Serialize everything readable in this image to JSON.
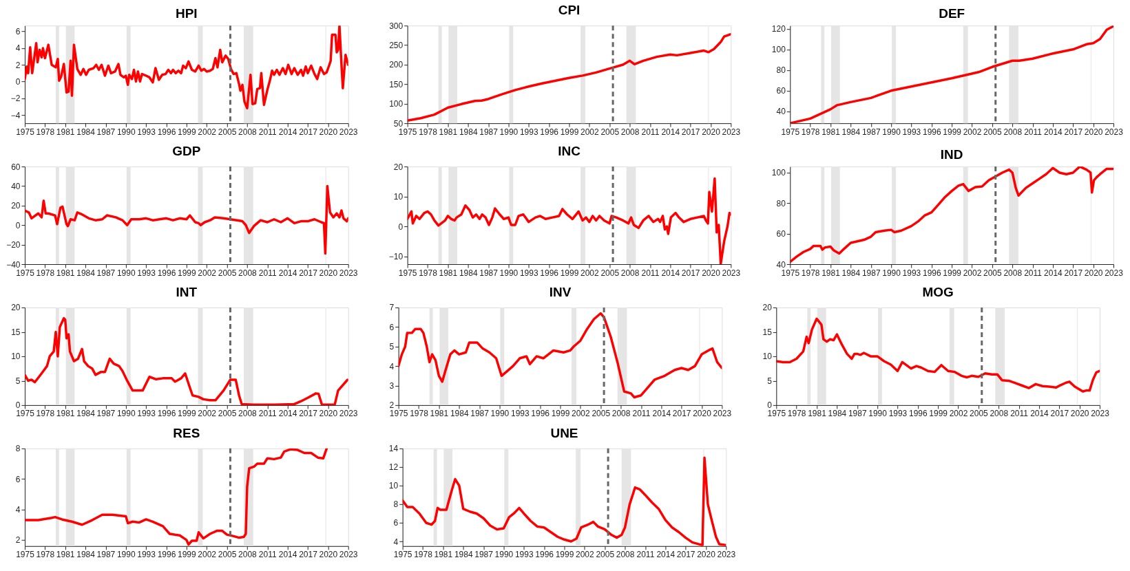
{
  "chart_data": [
    {
      "type": "line",
      "title": "HPI",
      "xlim": [
        1975,
        2023
      ],
      "xticks": [
        1975,
        1978,
        1981,
        1984,
        1987,
        1990,
        1993,
        1996,
        1999,
        2002,
        2005,
        2008,
        2011,
        2014,
        2017,
        2020,
        2023
      ],
      "ylim": [
        -5,
        6.7
      ],
      "yticks": [
        -4,
        -2,
        0,
        2,
        4,
        6
      ],
      "grid": false,
      "line_style": "solid",
      "x": [
        1975,
        1975.3,
        1975.5,
        1975.8,
        1976.1,
        1976.7,
        1976.9,
        1977.2,
        1977.5,
        1977.7,
        1978.0,
        1978.5,
        1979.0,
        1979.6,
        1979.9,
        1980.1,
        1980.4,
        1980.8,
        1981.2,
        1981.5,
        1981.8,
        1982.0,
        1982.3,
        1982.8,
        1983.3,
        1983.7,
        1984.1,
        1984.5,
        1985.2,
        1985.6,
        1986.0,
        1986.4,
        1986.9,
        1987.4,
        1987.8,
        1988.4,
        1988.9,
        1989.2,
        1989.7,
        1990.0,
        1990.3,
        1990.5,
        1990.9,
        1991.2,
        1991.5,
        1991.8,
        1992.1,
        1992.4,
        1993.0,
        1993.5,
        1994.0,
        1994.4,
        1994.9,
        1995.4,
        1995.9,
        1996.3,
        1996.7,
        1997.0,
        1997.4,
        1997.8,
        1998.2,
        1998.5,
        1998.9,
        1999.3,
        1999.8,
        2000.3,
        2000.8,
        2001.2,
        2001.6,
        2002.0,
        2002.5,
        2002.9,
        2003.3,
        2003.6,
        2004.0,
        2004.3,
        2004.8,
        2005.2,
        2005.6,
        2006.0,
        2006.4,
        2006.8,
        2007.0,
        2007.3,
        2007.6,
        2008.0,
        2008.5,
        2008.8,
        2009.2,
        2009.5,
        2009.9,
        2010.1,
        2010.5,
        2011.0,
        2011.4,
        2011.7,
        2012.0,
        2012.4,
        2012.8,
        2013.3,
        2013.7,
        2014.1,
        2014.6,
        2015.0,
        2015.5,
        2016.0,
        2016.3,
        2016.7,
        2017.0,
        2017.5,
        2018.0,
        2018.4,
        2018.9,
        2019.4,
        2019.8,
        2020.2,
        2020.4,
        2020.6,
        2021.1,
        2021.3,
        2021.5,
        2021.7,
        2022.0,
        2022.2,
        2022.6,
        2023.0
      ],
      "series": [
        {
          "color": "#ff0000",
          "values": [
            0.3,
            1.8,
            1.0,
            4.1,
            1.0,
            4.6,
            2.3,
            3.8,
            2.9,
            4.0,
            2.8,
            4.4,
            2.0,
            1.7,
            2.7,
            0.1,
            0.6,
            2.1,
            -1.3,
            -1.2,
            2.5,
            -1.7,
            4.4,
            1.5,
            0.8,
            1.5,
            0.8,
            1.4,
            1.6,
            2.0,
            1.4,
            2.0,
            0.7,
            1.9,
            1.0,
            1.2,
            2.1,
            0.8,
            0.5,
            0.7,
            -0.4,
            0.8,
            0.3,
            1.4,
            0.0,
            1.2,
            0.0,
            0.9,
            0.7,
            0.5,
            -0.1,
            1.6,
            0.2,
            0.8,
            0.9,
            1.4,
            1.0,
            1.4,
            1.0,
            1.3,
            1.0,
            1.9,
            1.6,
            2.4,
            1.4,
            1.2,
            1.9,
            1.3,
            1.5,
            1.2,
            1.3,
            1.5,
            2.8,
            1.7,
            3.8,
            2.3,
            3.1,
            2.7,
            1.5,
            0.9,
            1.0,
            -0.3,
            -1.1,
            -0.4,
            -2.4,
            -3.2,
            0.8,
            -2.7,
            -2.6,
            -0.9,
            -0.8,
            1.0,
            -2.8,
            -1.0,
            0.2,
            1.3,
            0.8,
            1.4,
            0.8,
            1.6,
            0.9,
            2.0,
            0.9,
            1.6,
            0.8,
            1.4,
            0.7,
            1.8,
            1.0,
            1.9,
            0.9,
            0.3,
            1.7,
            0.9,
            1.1,
            2.0,
            2.5,
            5.6,
            5.6,
            3.5,
            3.8,
            6.7,
            2.0,
            -0.8,
            3.2,
            2.0
          ]
        }
      ],
      "bands": [
        {
          "axis": "x",
          "from": 1979.6,
          "to": 1980.1,
          "color": "#e5e5e5"
        },
        {
          "axis": "x",
          "from": 1981.1,
          "to": 1982.4,
          "color": "#e5e5e5"
        },
        {
          "axis": "x",
          "from": 1990.1,
          "to": 1990.7,
          "color": "#e5e5e5"
        },
        {
          "axis": "x",
          "from": 2000.7,
          "to": 2001.4,
          "color": "#e5e5e5"
        },
        {
          "axis": "x",
          "from": 2007.5,
          "to": 2008.9,
          "color": "#e5e5e5"
        },
        {
          "axis": "x",
          "from": 2019.6,
          "to": 2019.75,
          "color": "#ececec"
        }
      ],
      "ref_lines": [
        {
          "axis": "x",
          "value": 2005.5,
          "color": "#666666",
          "line_style": "dashed"
        }
      ]
    },
    {
      "type": "line",
      "title": "CPI",
      "xlim": [
        1975,
        2023
      ],
      "xticks": [
        1975,
        1978,
        1981,
        1984,
        1987,
        1990,
        1993,
        1996,
        1999,
        2002,
        2005,
        2008,
        2011,
        2014,
        2017,
        2020,
        2023
      ],
      "ylim": [
        50,
        300
      ],
      "yticks": [
        50,
        100,
        150,
        200,
        250,
        300
      ],
      "grid": false,
      "line_style": "solid",
      "x": [
        1975,
        1977,
        1979,
        1981,
        1983,
        1985,
        1986,
        1987,
        1989,
        1991,
        1993,
        1995,
        1997,
        1999,
        2001,
        2003,
        2005,
        2007,
        2008,
        2008.7,
        2010,
        2012,
        2014,
        2015,
        2017,
        2019,
        2019.7,
        2020.5,
        2021.5,
        2022,
        2023
      ],
      "series": [
        {
          "color": "#ff0000",
          "values": [
            57,
            63,
            72,
            90,
            99,
            107,
            108,
            112,
            124,
            135,
            144,
            152,
            159,
            166,
            172,
            180,
            190,
            200,
            210,
            201,
            210,
            220,
            226,
            224,
            230,
            236,
            232,
            240,
            258,
            272,
            278
          ]
        }
      ],
      "bands": [
        {
          "axis": "x",
          "from": 1979.6,
          "to": 1980.1,
          "color": "#e5e5e5"
        },
        {
          "axis": "x",
          "from": 1981.1,
          "to": 1982.4,
          "color": "#e5e5e5"
        },
        {
          "axis": "x",
          "from": 1990.1,
          "to": 1990.7,
          "color": "#e5e5e5"
        },
        {
          "axis": "x",
          "from": 2000.7,
          "to": 2001.4,
          "color": "#e5e5e5"
        },
        {
          "axis": "x",
          "from": 2007.5,
          "to": 2008.9,
          "color": "#e5e5e5"
        },
        {
          "axis": "x",
          "from": 2019.6,
          "to": 2019.75,
          "color": "#ececec"
        }
      ],
      "ref_lines": [
        {
          "axis": "x",
          "value": 2005.5,
          "color": "#666666",
          "line_style": "dashed"
        }
      ]
    },
    {
      "type": "line",
      "title": "DEF",
      "xlim": [
        1975,
        2023
      ],
      "xticks": [
        1975,
        1978,
        1981,
        1984,
        1987,
        1990,
        1993,
        1996,
        1999,
        2002,
        2005,
        2008,
        2011,
        2014,
        2017,
        2020,
        2023
      ],
      "ylim": [
        28.5,
        123
      ],
      "yticks": [
        40,
        60,
        80,
        100,
        120
      ],
      "grid": false,
      "line_style": "solid",
      "x": [
        1975,
        1978,
        1981,
        1982,
        1984,
        1987,
        1990,
        1993,
        1996,
        1999,
        2001,
        2003,
        2005,
        2007,
        2008,
        2009,
        2011,
        2014,
        2017,
        2019,
        2020,
        2021,
        2022,
        2023
      ],
      "series": [
        {
          "color": "#ff0000",
          "values": [
            28.5,
            33,
            42,
            46,
            49,
            53,
            60,
            64,
            68,
            72,
            75,
            78,
            83,
            87,
            89,
            89,
            91,
            96,
            100,
            105,
            106,
            110,
            119,
            122.5
          ]
        }
      ],
      "bands": [
        {
          "axis": "x",
          "from": 1979.6,
          "to": 1980.1,
          "color": "#e5e5e5"
        },
        {
          "axis": "x",
          "from": 1981.1,
          "to": 1982.4,
          "color": "#e5e5e5"
        },
        {
          "axis": "x",
          "from": 1990.1,
          "to": 1990.7,
          "color": "#e5e5e5"
        },
        {
          "axis": "x",
          "from": 2000.7,
          "to": 2001.4,
          "color": "#e5e5e5"
        },
        {
          "axis": "x",
          "from": 2007.5,
          "to": 2008.9,
          "color": "#e5e5e5"
        },
        {
          "axis": "x",
          "from": 2019.6,
          "to": 2019.75,
          "color": "#ececec"
        }
      ],
      "ref_lines": [
        {
          "axis": "x",
          "value": 2005.5,
          "color": "#666666",
          "line_style": "dashed"
        }
      ]
    },
    {
      "type": "line",
      "title": "GDP",
      "xlim": [
        1975,
        2023
      ],
      "xticks": [
        1975,
        1978,
        1981,
        1984,
        1987,
        1990,
        1993,
        1996,
        1999,
        2002,
        2005,
        2008,
        2011,
        2014,
        2017,
        2020,
        2023
      ],
      "ylim": [
        -40,
        60
      ],
      "yticks": [
        -40,
        -20,
        0,
        20,
        40,
        60
      ],
      "grid": false,
      "line_style": "solid",
      "x": [
        1975,
        1975.6,
        1976,
        1977,
        1977.5,
        1977.8,
        1978.1,
        1978.5,
        1979.5,
        1979.8,
        1980.3,
        1980.6,
        1981.2,
        1981.4,
        1981.8,
        1982.4,
        1982.8,
        1983.5,
        1984.5,
        1985.5,
        1986.5,
        1987.2,
        1988.5,
        1989.5,
        1990.2,
        1990.8,
        1992,
        1993,
        1994,
        1995,
        1996,
        1997,
        1998,
        1999,
        1999.5,
        2000.3,
        2000.8,
        2001.1,
        2001.7,
        2002.5,
        2003.2,
        2004.5,
        2005.5,
        2006.5,
        2007.3,
        2007.8,
        2008.3,
        2009,
        2010,
        2011,
        2012,
        2013,
        2014,
        2015,
        2016,
        2017,
        2018,
        2019,
        2019.4,
        2019.6,
        2019.9,
        2020.3,
        2020.8,
        2021.3,
        2021.7,
        2022,
        2022.3,
        2022.8,
        2023
      ],
      "series": [
        {
          "color": "#ff0000",
          "values": [
            15,
            13,
            7,
            12,
            8,
            25,
            12,
            12,
            10,
            1,
            18,
            19,
            1,
            -1,
            6,
            5,
            13,
            11,
            7,
            5,
            6,
            10,
            8,
            5,
            0,
            6,
            6,
            7,
            5,
            6,
            7,
            5,
            7,
            6,
            10,
            3,
            2,
            0,
            3,
            5,
            8,
            7,
            6,
            5,
            4,
            0,
            -8,
            -1,
            5,
            3,
            6,
            3,
            7,
            2,
            4,
            4,
            6,
            3,
            2,
            -29,
            40,
            13,
            8,
            12,
            8,
            15,
            7,
            4,
            7
          ]
        }
      ],
      "bands": [
        {
          "axis": "x",
          "from": 1979.6,
          "to": 1980.1,
          "color": "#e5e5e5"
        },
        {
          "axis": "x",
          "from": 1981.1,
          "to": 1982.4,
          "color": "#e5e5e5"
        },
        {
          "axis": "x",
          "from": 1990.1,
          "to": 1990.7,
          "color": "#e5e5e5"
        },
        {
          "axis": "x",
          "from": 2000.7,
          "to": 2001.4,
          "color": "#e5e5e5"
        },
        {
          "axis": "x",
          "from": 2007.5,
          "to": 2008.9,
          "color": "#e5e5e5"
        },
        {
          "axis": "x",
          "from": 2019.6,
          "to": 2019.75,
          "color": "#ececec"
        }
      ],
      "ref_lines": [
        {
          "axis": "x",
          "value": 2005.5,
          "color": "#666666",
          "line_style": "dashed"
        }
      ]
    },
    {
      "type": "line",
      "title": "INC",
      "xlim": [
        1975,
        2023
      ],
      "xticks": [
        1975,
        1978,
        1981,
        1984,
        1987,
        1990,
        1993,
        1996,
        1999,
        2002,
        2005,
        2008,
        2011,
        2014,
        2017,
        2020,
        2023
      ],
      "ylim": [
        -12.6,
        20
      ],
      "yticks": [
        -10,
        0,
        10,
        20
      ],
      "grid": false,
      "line_style": "solid",
      "x": [
        1975,
        1975.6,
        1975.8,
        1976.3,
        1976.8,
        1977.5,
        1978,
        1978.5,
        1979,
        1979.6,
        1980,
        1980.6,
        1981,
        1981.5,
        1982,
        1982.3,
        1983,
        1983.6,
        1984.2,
        1984.7,
        1985.2,
        1985.7,
        1986.1,
        1986.6,
        1987.1,
        1987.6,
        1988,
        1988.7,
        1989.3,
        1990,
        1990.4,
        1991,
        1991.5,
        1992.2,
        1993,
        1994,
        1994.7,
        1995.5,
        1996.5,
        1997.5,
        1998,
        1998.7,
        1999.5,
        2000.4,
        2001,
        2001.5,
        2002,
        2002.5,
        2003,
        2003.5,
        2004.2,
        2005,
        2005.3,
        2006,
        2007,
        2007.8,
        2008.2,
        2008.6,
        2009.3,
        2010,
        2010.8,
        2011.5,
        2012.2,
        2012.5,
        2012.9,
        2013.2,
        2013.5,
        2013.7,
        2014.1,
        2014.8,
        2015.3,
        2016,
        2017,
        2018,
        2019,
        2019.3,
        2019.6,
        2019.8,
        2020.2,
        2020.6,
        2020.9,
        2021.2,
        2021.5,
        2022,
        2022.5,
        2022.8,
        2023
      ],
      "series": [
        {
          "color": "#ff0000",
          "values": [
            2.5,
            5,
            1,
            3.5,
            2.5,
            4.5,
            5,
            4,
            2,
            0.3,
            1,
            2,
            3.5,
            2.5,
            2,
            3,
            4,
            7,
            5.5,
            3,
            4,
            2.5,
            4,
            3,
            0.5,
            3,
            6,
            4,
            2.5,
            3,
            0.5,
            0.5,
            3.5,
            4,
            1.5,
            3,
            3.5,
            2.5,
            3,
            3.5,
            5.8,
            4,
            2.5,
            5,
            2,
            3,
            1.5,
            3.5,
            2,
            3.5,
            2,
            1,
            3.5,
            3,
            2,
            1,
            3,
            0.5,
            -0.5,
            2,
            3.5,
            1.5,
            2.5,
            1.5,
            3.5,
            -1,
            0,
            -2.5,
            3,
            4.5,
            3,
            1.5,
            2.5,
            3,
            3.5,
            2,
            1,
            11.5,
            5,
            16,
            -2,
            0.5,
            -12.5,
            -5,
            0,
            4.5,
            4
          ]
        }
      ],
      "bands": [
        {
          "axis": "x",
          "from": 1979.6,
          "to": 1980.1,
          "color": "#e5e5e5"
        },
        {
          "axis": "x",
          "from": 1981.1,
          "to": 1982.4,
          "color": "#e5e5e5"
        },
        {
          "axis": "x",
          "from": 1990.1,
          "to": 1990.7,
          "color": "#e5e5e5"
        },
        {
          "axis": "x",
          "from": 2000.7,
          "to": 2001.4,
          "color": "#e5e5e5"
        },
        {
          "axis": "x",
          "from": 2007.5,
          "to": 2008.9,
          "color": "#e5e5e5"
        },
        {
          "axis": "x",
          "from": 2019.6,
          "to": 2019.75,
          "color": "#ececec"
        }
      ],
      "ref_lines": [
        {
          "axis": "x",
          "value": 2005.5,
          "color": "#666666",
          "line_style": "dashed"
        }
      ]
    },
    {
      "type": "line",
      "title": "IND",
      "xlim": [
        1975,
        2023
      ],
      "xticks": [
        1975,
        1978,
        1981,
        1984,
        1987,
        1990,
        1993,
        1996,
        1999,
        2002,
        2005,
        2008,
        2011,
        2014,
        2017,
        2020,
        2023
      ],
      "ylim": [
        40,
        104
      ],
      "yticks": [
        40,
        60,
        80,
        100
      ],
      "grid": false,
      "line_style": "solid",
      "x": [
        1975,
        1976,
        1977,
        1978,
        1978.5,
        1979.5,
        1979.8,
        1980.2,
        1981,
        1981.5,
        1982.3,
        1983,
        1984,
        1985,
        1986,
        1987,
        1987.7,
        1989,
        1990,
        1990.5,
        1991.5,
        1993,
        1994,
        1995,
        1996,
        1997,
        1998,
        1999,
        2000,
        2000.7,
        2001.5,
        2002.5,
        2003.5,
        2004.5,
        2005.5,
        2006.5,
        2007.5,
        2008,
        2008.5,
        2008.9,
        2010,
        2011,
        2012,
        2013,
        2014,
        2015,
        2016,
        2017,
        2018,
        2019,
        2019.6,
        2019.8,
        2020.1,
        2020.5,
        2021,
        2022,
        2023
      ],
      "series": [
        {
          "color": "#ff0000",
          "values": [
            41.5,
            45,
            48,
            50,
            52,
            52,
            49.5,
            51,
            51.5,
            49,
            47,
            50,
            54,
            55,
            56,
            58,
            61,
            62,
            62.5,
            61,
            62,
            65,
            68,
            72,
            74,
            79,
            84,
            88,
            91.5,
            92.5,
            88,
            90.5,
            91,
            95,
            97.5,
            100,
            102,
            100,
            90,
            85,
            90,
            93,
            96,
            99,
            103,
            100,
            99,
            100,
            104,
            102,
            100,
            87,
            95,
            97,
            99,
            102.5,
            102.5
          ]
        }
      ],
      "bands": [
        {
          "axis": "x",
          "from": 1979.6,
          "to": 1980.1,
          "color": "#e5e5e5"
        },
        {
          "axis": "x",
          "from": 1981.1,
          "to": 1982.4,
          "color": "#e5e5e5"
        },
        {
          "axis": "x",
          "from": 1990.1,
          "to": 1990.7,
          "color": "#e5e5e5"
        },
        {
          "axis": "x",
          "from": 2000.7,
          "to": 2001.4,
          "color": "#e5e5e5"
        },
        {
          "axis": "x",
          "from": 2007.5,
          "to": 2008.9,
          "color": "#e5e5e5"
        },
        {
          "axis": "x",
          "from": 2019.6,
          "to": 2019.75,
          "color": "#ececec"
        }
      ],
      "ref_lines": [
        {
          "axis": "x",
          "value": 2005.5,
          "color": "#666666",
          "line_style": "dashed"
        }
      ]
    },
    {
      "type": "line",
      "title": "INT",
      "xlim": [
        1975,
        2023
      ],
      "xticks": [
        1975,
        1978,
        1981,
        1984,
        1987,
        1990,
        1993,
        1996,
        1999,
        2002,
        2005,
        2008,
        2011,
        2014,
        2017,
        2020,
        2023
      ],
      "ylim": [
        0,
        20
      ],
      "yticks": [
        0,
        5,
        10,
        15,
        20
      ],
      "grid": false,
      "line_style": "solid",
      "x": [
        1975,
        1975.5,
        1976,
        1976.5,
        1977.5,
        1978.3,
        1978.7,
        1979.3,
        1979.6,
        1979.9,
        1980.2,
        1980.8,
        1981.0,
        1981.2,
        1981.5,
        1981.7,
        1982.3,
        1982.9,
        1983.5,
        1983.8,
        1984.4,
        1985,
        1985.5,
        1986.3,
        1986.9,
        1987.6,
        1988.2,
        1989,
        1989.5,
        1990.2,
        1991,
        1992.5,
        1993.5,
        1994.5,
        1995.5,
        1996.8,
        1997.3,
        1998.2,
        1998.8,
        1999.4,
        1999.9,
        2000.8,
        2001.5,
        2002.5,
        2003.3,
        2004.5,
        2005.5,
        2006.3,
        2006.8,
        2007.2,
        2009,
        2012,
        2015,
        2016,
        2017,
        2018.2,
        2018.6,
        2019.1,
        2021,
        2021.5,
        2022.9
      ],
      "series": [
        {
          "color": "#ff0000",
          "values": [
            6.2,
            5,
            5.2,
            4.7,
            6.5,
            8,
            10,
            11,
            15,
            10,
            16,
            17.8,
            17.5,
            13.7,
            14.5,
            11,
            9,
            9.5,
            11.5,
            9,
            8,
            7.5,
            6.2,
            6.8,
            6.8,
            9.5,
            8.5,
            8,
            7,
            5,
            3,
            3,
            5.8,
            5.3,
            5.5,
            5.5,
            4.8,
            5.5,
            6.5,
            4,
            2,
            1.7,
            1.2,
            1,
            1,
            3,
            5.2,
            5.2,
            2,
            0.2,
            0.1,
            0.1,
            0.2,
            0.8,
            1.5,
            2.4,
            2.3,
            0.1,
            0.1,
            3,
            5.2
          ]
        }
      ],
      "bands": [
        {
          "axis": "x",
          "from": 1979.6,
          "to": 1980.1,
          "color": "#e5e5e5"
        },
        {
          "axis": "x",
          "from": 1981.1,
          "to": 1982.4,
          "color": "#e5e5e5"
        },
        {
          "axis": "x",
          "from": 1990.1,
          "to": 1990.7,
          "color": "#e5e5e5"
        },
        {
          "axis": "x",
          "from": 2000.7,
          "to": 2001.4,
          "color": "#e5e5e5"
        },
        {
          "axis": "x",
          "from": 2007.5,
          "to": 2008.9,
          "color": "#e5e5e5"
        },
        {
          "axis": "x",
          "from": 2019.6,
          "to": 2019.75,
          "color": "#ececec"
        }
      ],
      "ref_lines": [
        {
          "axis": "x",
          "value": 2005.5,
          "color": "#666666",
          "line_style": "dashed"
        }
      ]
    },
    {
      "type": "line",
      "title": "INV",
      "xlim": [
        1975,
        2023
      ],
      "xticks": [
        1975,
        1978,
        1981,
        1984,
        1987,
        1990,
        1993,
        1996,
        1999,
        2002,
        2005,
        2008,
        2011,
        2014,
        2017,
        2020,
        2023
      ],
      "ylim": [
        2,
        7
      ],
      "yticks": [
        2,
        3,
        4,
        5,
        6,
        7
      ],
      "grid": false,
      "line_style": "solid",
      "x": [
        1975,
        1975.5,
        1976,
        1976.3,
        1977,
        1977.5,
        1978.3,
        1978.7,
        1979.2,
        1979.6,
        1980,
        1980.5,
        1981,
        1981.5,
        1982,
        1982.7,
        1983.3,
        1984,
        1985,
        1985.5,
        1986.7,
        1987.5,
        1988.5,
        1989.5,
        1990.3,
        1991,
        1992,
        1993,
        1994,
        1994.5,
        1995.5,
        1996.5,
        1998,
        1999.5,
        2000.5,
        2001,
        2002,
        2003,
        2004,
        2005,
        2005.5,
        2006.5,
        2007.5,
        2008.5,
        2009.5,
        2010,
        2011,
        2012,
        2013,
        2014.5,
        2016,
        2017,
        2018,
        2019,
        2020,
        2021,
        2021.6,
        2022.3,
        2023
      ],
      "series": [
        {
          "color": "#ff0000",
          "values": [
            4,
            4.6,
            5.0,
            5.7,
            5.7,
            5.9,
            5.9,
            5.7,
            5.0,
            4.2,
            4.6,
            4.3,
            3.5,
            3.2,
            3.8,
            4.6,
            4.8,
            4.6,
            4.7,
            5.2,
            5.2,
            4.9,
            4.7,
            4.4,
            3.5,
            3.7,
            4.0,
            4.4,
            4.5,
            4.1,
            4.5,
            4.4,
            4.8,
            4.7,
            4.8,
            5.0,
            5.3,
            5.9,
            6.4,
            6.7,
            6.5,
            5.5,
            4.2,
            2.7,
            2.6,
            2.4,
            2.5,
            2.9,
            3.3,
            3.5,
            3.8,
            3.9,
            3.8,
            4.0,
            4.6,
            4.8,
            4.9,
            4.2,
            3.9
          ]
        }
      ],
      "bands": [
        {
          "axis": "x",
          "from": 1979.6,
          "to": 1980.1,
          "color": "#e5e5e5"
        },
        {
          "axis": "x",
          "from": 1981.1,
          "to": 1982.4,
          "color": "#e5e5e5"
        },
        {
          "axis": "x",
          "from": 1990.1,
          "to": 1990.7,
          "color": "#e5e5e5"
        },
        {
          "axis": "x",
          "from": 2000.7,
          "to": 2001.4,
          "color": "#e5e5e5"
        },
        {
          "axis": "x",
          "from": 2007.5,
          "to": 2008.9,
          "color": "#e5e5e5"
        },
        {
          "axis": "x",
          "from": 2019.6,
          "to": 2019.75,
          "color": "#ececec"
        }
      ],
      "ref_lines": [
        {
          "axis": "x",
          "value": 2005.5,
          "color": "#666666",
          "line_style": "dashed"
        }
      ]
    },
    {
      "type": "line",
      "title": "MOG",
      "xlim": [
        1975,
        2023
      ],
      "xticks": [
        1975,
        1978,
        1981,
        1984,
        1987,
        1990,
        1993,
        1996,
        1999,
        2002,
        2005,
        2008,
        2011,
        2014,
        2017,
        2020,
        2023
      ],
      "ylim": [
        0,
        20
      ],
      "yticks": [
        0,
        5,
        10,
        15,
        20
      ],
      "grid": false,
      "line_style": "solid",
      "x": [
        1975,
        1976,
        1977,
        1978,
        1979,
        1979.5,
        1979.8,
        1980.3,
        1981,
        1981.7,
        1982,
        1982.5,
        1983,
        1983.5,
        1984,
        1984.7,
        1985.5,
        1986.2,
        1986.6,
        1987,
        1987.5,
        1988,
        1989,
        1990,
        1991,
        1992,
        1993,
        1993.7,
        1994.3,
        1995,
        1995.8,
        1996.5,
        1997.5,
        1998.5,
        1999.5,
        2000.5,
        2001.5,
        2002.5,
        2003.3,
        2004,
        2005,
        2006,
        2007,
        2007.8,
        2008.5,
        2009.5,
        2010.5,
        2011.5,
        2012.5,
        2013.5,
        2014.5,
        2015.5,
        2016.5,
        2017.2,
        2018,
        2018.5,
        2019.3,
        2020.5,
        2021,
        2021.5,
        2022,
        2022.5,
        2023
      ],
      "series": [
        {
          "color": "#ff0000",
          "values": [
            9.0,
            8.8,
            8.8,
            9.5,
            11,
            14,
            12.7,
            15.5,
            17.7,
            16.5,
            13.5,
            13,
            13.5,
            13.3,
            14.5,
            12.5,
            10.5,
            9.5,
            10.5,
            10.5,
            10.3,
            10.7,
            10,
            10,
            9,
            8.3,
            7,
            8.8,
            8.2,
            7.5,
            8,
            7.7,
            7,
            6.8,
            8.2,
            7,
            6.8,
            6.0,
            5.7,
            6.0,
            5.8,
            6.5,
            6.3,
            6.3,
            5.1,
            5.0,
            4.5,
            4.0,
            3.5,
            4.3,
            3.9,
            3.8,
            3.6,
            4.1,
            4.6,
            4.8,
            3.8,
            2.8,
            3.0,
            3.0,
            5.2,
            6.7,
            7.0
          ]
        }
      ],
      "bands": [
        {
          "axis": "x",
          "from": 1979.6,
          "to": 1980.1,
          "color": "#e5e5e5"
        },
        {
          "axis": "x",
          "from": 1981.1,
          "to": 1982.4,
          "color": "#e5e5e5"
        },
        {
          "axis": "x",
          "from": 1990.1,
          "to": 1990.7,
          "color": "#e5e5e5"
        },
        {
          "axis": "x",
          "from": 2000.7,
          "to": 2001.4,
          "color": "#e5e5e5"
        },
        {
          "axis": "x",
          "from": 2007.5,
          "to": 2008.9,
          "color": "#e5e5e5"
        },
        {
          "axis": "x",
          "from": 2019.6,
          "to": 2019.75,
          "color": "#ececec"
        }
      ],
      "ref_lines": [
        {
          "axis": "x",
          "value": 2005.5,
          "color": "#666666",
          "line_style": "dashed"
        }
      ]
    },
    {
      "type": "line",
      "title": "RES",
      "xlim": [
        1975,
        2023
      ],
      "xticks": [
        1975,
        1978,
        1981,
        1984,
        1987,
        1990,
        1993,
        1996,
        1999,
        2002,
        2005,
        2008,
        2011,
        2014,
        2017,
        2020,
        2023
      ],
      "ylim": [
        1.6,
        8
      ],
      "yticks": [
        2,
        4,
        6,
        8
      ],
      "grid": false,
      "line_style": "solid",
      "x": [
        1975,
        1977,
        1979,
        1979.5,
        1980.5,
        1982,
        1983.5,
        1985,
        1986.5,
        1988,
        1990,
        1990.3,
        1991,
        1992,
        1993,
        1994,
        1995.5,
        1996.5,
        1998,
        1999,
        1999.3,
        1999.8,
        2000.5,
        2000.8,
        2001.5,
        2002.5,
        2003.5,
        2004.3,
        2005,
        2006,
        2006.8,
        2007.5,
        2007.8,
        2008.0,
        2008.3,
        2009,
        2009.5,
        2010.5,
        2011,
        2012,
        2013,
        2013.5,
        2014.5,
        2015.5,
        2016.5,
        2017.5,
        2018.5,
        2019.3,
        2019.8
      ],
      "series": [
        {
          "color": "#ff0000",
          "values": [
            3.3,
            3.3,
            3.45,
            3.5,
            3.35,
            3.2,
            3.0,
            3.3,
            3.65,
            3.65,
            3.55,
            3.1,
            3.2,
            3.15,
            3.35,
            3.2,
            2.9,
            2.4,
            2.3,
            2.0,
            1.7,
            1.95,
            1.95,
            2.5,
            2.1,
            2.4,
            2.6,
            2.6,
            2.35,
            2.25,
            2.15,
            2.2,
            2.4,
            5.5,
            6.7,
            6.8,
            7.0,
            7.0,
            7.35,
            7.3,
            7.4,
            7.8,
            7.95,
            7.9,
            7.7,
            7.7,
            7.4,
            7.35,
            8.0
          ]
        }
      ],
      "bands": [
        {
          "axis": "x",
          "from": 1979.6,
          "to": 1980.1,
          "color": "#e5e5e5"
        },
        {
          "axis": "x",
          "from": 1981.1,
          "to": 1982.4,
          "color": "#e5e5e5"
        },
        {
          "axis": "x",
          "from": 1990.1,
          "to": 1990.7,
          "color": "#e5e5e5"
        },
        {
          "axis": "x",
          "from": 2000.7,
          "to": 2001.4,
          "color": "#e5e5e5"
        },
        {
          "axis": "x",
          "from": 2007.5,
          "to": 2008.9,
          "color": "#e5e5e5"
        },
        {
          "axis": "x",
          "from": 2019.6,
          "to": 2019.75,
          "color": "#ececec"
        }
      ],
      "ref_lines": [
        {
          "axis": "x",
          "value": 2005.5,
          "color": "#666666",
          "line_style": "dashed"
        }
      ]
    },
    {
      "type": "line",
      "title": "UNE",
      "xlim": [
        1975,
        2023
      ],
      "xticks": [
        1975,
        1978,
        1981,
        1984,
        1987,
        1990,
        1993,
        1996,
        1999,
        2002,
        2005,
        2008,
        2011,
        2014,
        2017,
        2020,
        2023
      ],
      "ylim": [
        3.5,
        14
      ],
      "yticks": [
        4,
        6,
        8,
        10,
        12,
        14
      ],
      "grid": false,
      "line_style": "solid",
      "x": [
        1975,
        1975.7,
        1976.5,
        1977.5,
        1978.5,
        1979.3,
        1979.8,
        1980.2,
        1980.6,
        1981.5,
        1982.3,
        1982.8,
        1983.4,
        1984,
        1985,
        1986,
        1987,
        1988,
        1989,
        1990,
        1990.8,
        1991.5,
        1992.3,
        1993,
        1994,
        1995,
        1996,
        1997,
        1998,
        1999,
        2000,
        2000.8,
        2001.5,
        2002.5,
        2003.3,
        2004,
        2005,
        2006,
        2006.8,
        2007.5,
        2008,
        2008.7,
        2009.5,
        2010.2,
        2011,
        2012,
        2013,
        2014,
        2015,
        2016,
        2017,
        2018,
        2019,
        2019.5,
        2019.8,
        2020.3,
        2020.8,
        2021.5,
        2022,
        2023
      ],
      "series": [
        {
          "color": "#ff0000",
          "values": [
            8.4,
            7.7,
            7.7,
            7.0,
            6.0,
            5.8,
            6.2,
            7.6,
            7.4,
            7.4,
            9.5,
            10.7,
            10.0,
            7.5,
            7.2,
            7.0,
            6.5,
            5.7,
            5.3,
            5.4,
            6.6,
            7.0,
            7.6,
            7.0,
            6.2,
            5.6,
            5.5,
            5.0,
            4.5,
            4.2,
            4.0,
            4.3,
            5.5,
            5.8,
            6.1,
            5.6,
            5.3,
            4.7,
            4.4,
            4.7,
            5.5,
            8.0,
            9.8,
            9.6,
            9.0,
            8.2,
            7.5,
            6.3,
            5.5,
            5.0,
            4.4,
            3.9,
            3.7,
            3.6,
            13.0,
            8.0,
            6.5,
            4.5,
            3.7,
            3.6
          ]
        }
      ],
      "bands": [
        {
          "axis": "x",
          "from": 1979.6,
          "to": 1980.1,
          "color": "#e5e5e5"
        },
        {
          "axis": "x",
          "from": 1981.1,
          "to": 1982.4,
          "color": "#e5e5e5"
        },
        {
          "axis": "x",
          "from": 1990.1,
          "to": 1990.7,
          "color": "#e5e5e5"
        },
        {
          "axis": "x",
          "from": 2000.7,
          "to": 2001.4,
          "color": "#e5e5e5"
        },
        {
          "axis": "x",
          "from": 2007.5,
          "to": 2008.9,
          "color": "#e5e5e5"
        },
        {
          "axis": "x",
          "from": 2019.6,
          "to": 2019.75,
          "color": "#ececec"
        }
      ],
      "ref_lines": [
        {
          "axis": "x",
          "value": 2005.5,
          "color": "#666666",
          "line_style": "dashed"
        }
      ]
    }
  ]
}
